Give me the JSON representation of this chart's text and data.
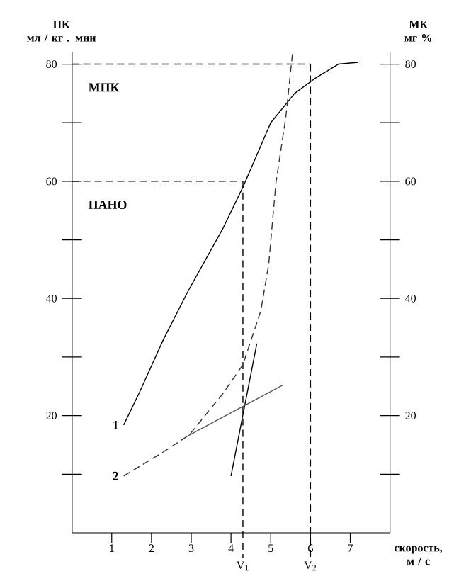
{
  "chart_data": {
    "type": "line",
    "xlabel": "скорость,\nм / с",
    "ylabel": "ПК\nмл / кг . мин",
    "y2label": "МК\nмг %",
    "xlim": [
      0,
      8
    ],
    "xticks": [
      1,
      2,
      3,
      4,
      5,
      6,
      7
    ],
    "ylim": [
      0,
      82
    ],
    "yticks": [
      {
        "value": 10,
        "label": null
      },
      20,
      {
        "value": 30,
        "label": null
      },
      40,
      {
        "value": 50,
        "label": null
      },
      60,
      {
        "value": 70,
        "label": null
      },
      80
    ],
    "y2lim": [
      0,
      82
    ],
    "y2ticks": [
      {
        "value": 10,
        "label": null
      },
      20,
      {
        "value": 30,
        "label": null
      },
      40,
      {
        "value": 50,
        "label": null
      },
      60,
      {
        "value": 70,
        "label": null
      },
      80
    ],
    "series": [
      {
        "name": "1",
        "color": "#000000",
        "line_style": "solid",
        "x": [
          1.3,
          1.7,
          2.3,
          2.9,
          3.8,
          4.3,
          5.0,
          5.6,
          6.1,
          6.7,
          7.2
        ],
        "values": [
          18.4,
          24,
          33,
          41,
          52,
          59,
          70,
          75,
          77.5,
          80,
          80.3
        ]
      },
      {
        "name": "2",
        "color": "#333333",
        "line_style": "dashed",
        "x": [
          1.3,
          2.25,
          2.95,
          3.8,
          4.3,
          4.75,
          4.95,
          5.13,
          5.38,
          5.55
        ],
        "values": [
          9.7,
          13.6,
          16.7,
          23.8,
          28.7,
          37.9,
          45.9,
          59.7,
          71,
          82
        ]
      },
      {
        "color": "#000000",
        "line_style": "solid",
        "x": [
          4.0,
          4.65
        ],
        "values": [
          9.7,
          32.3
        ]
      },
      {
        "color": "#555555",
        "line_style": "solid",
        "x": [
          2.9,
          5.3
        ],
        "values": [
          16.5,
          25.2
        ]
      }
    ],
    "ref_lines": [
      {
        "axis": "y",
        "value": 80,
        "label": "МПК",
        "line_style": "dashed"
      },
      {
        "axis": "x",
        "value": 6,
        "label": "V$_{2}$",
        "line_style": "dashed"
      },
      {
        "axis": "y",
        "value": 60,
        "label": "ПАНО",
        "line_style": "dashed"
      },
      {
        "axis": "x",
        "value": 4.3,
        "label": "V$_{1}$",
        "line_style": "dashed"
      }
    ],
    "grid": false,
    "marker": "none"
  }
}
